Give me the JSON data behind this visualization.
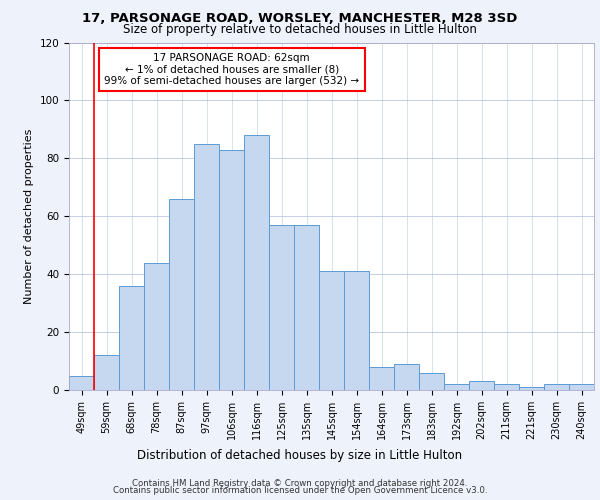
{
  "title1": "17, PARSONAGE ROAD, WORSLEY, MANCHESTER, M28 3SD",
  "title2": "Size of property relative to detached houses in Little Hulton",
  "xlabel": "Distribution of detached houses by size in Little Hulton",
  "ylabel": "Number of detached properties",
  "footer1": "Contains HM Land Registry data © Crown copyright and database right 2024.",
  "footer2": "Contains public sector information licensed under the Open Government Licence v3.0.",
  "annotation_line1": "17 PARSONAGE ROAD: 62sqm",
  "annotation_line2": "← 1% of detached houses are smaller (8)",
  "annotation_line3": "99% of semi-detached houses are larger (532) →",
  "bar_labels": [
    "49sqm",
    "59sqm",
    "68sqm",
    "78sqm",
    "87sqm",
    "97sqm",
    "106sqm",
    "116sqm",
    "125sqm",
    "135sqm",
    "145sqm",
    "154sqm",
    "164sqm",
    "173sqm",
    "183sqm",
    "192sqm",
    "202sqm",
    "211sqm",
    "221sqm",
    "230sqm",
    "240sqm"
  ],
  "bar_values": [
    5,
    12,
    36,
    44,
    66,
    85,
    83,
    88,
    57,
    57,
    41,
    41,
    8,
    9,
    6,
    2,
    3,
    2,
    1,
    2,
    2
  ],
  "bar_color": "#c5d8f0",
  "bar_edge_color": "#5b9bd5",
  "vline_color": "red",
  "vline_pos": 0.5,
  "ylim": [
    0,
    120
  ],
  "yticks": [
    0,
    20,
    40,
    60,
    80,
    100,
    120
  ],
  "bg_color": "#eef2fa",
  "plot_bg": "#ffffff",
  "title_fontsize": 9.5,
  "subtitle_fontsize": 8.5,
  "ylabel_fontsize": 8,
  "xlabel_fontsize": 8.5,
  "tick_fontsize": 7,
  "footer_fontsize": 6.2,
  "ann_fontsize": 7.5
}
